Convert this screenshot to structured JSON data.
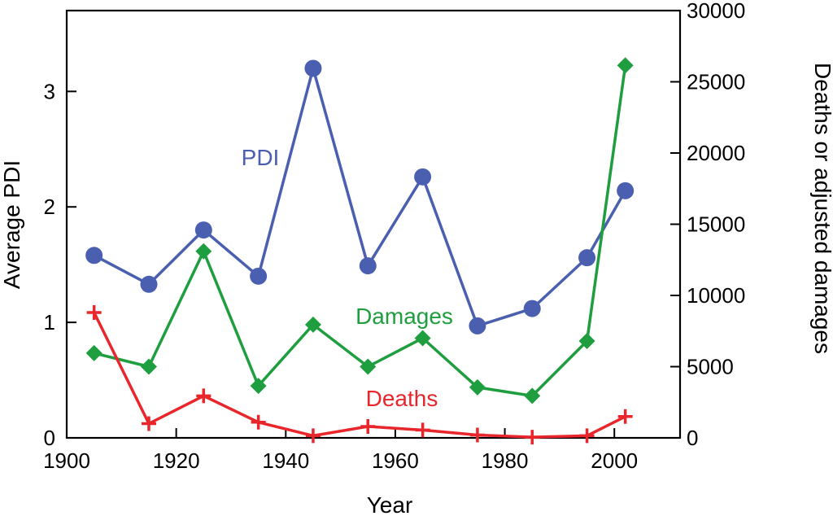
{
  "chart_data": {
    "type": "line",
    "xlabel": "Year",
    "ylabel_left": "Average PDI",
    "ylabel_right": "Deaths or adjusted damages",
    "xlim": [
      1900,
      2012
    ],
    "ylim_left": [
      0,
      3.7
    ],
    "ylim_right": [
      0,
      30000
    ],
    "x_ticks": [
      1900,
      1920,
      1940,
      1960,
      1980,
      2000
    ],
    "y_left_ticks": [
      0,
      1,
      2,
      3
    ],
    "y_right_ticks": [
      0,
      5000,
      10000,
      15000,
      20000,
      25000,
      30000
    ],
    "grid": false,
    "series": [
      {
        "name": "PDI",
        "axis": "left",
        "color": "#4a5fb0",
        "marker": "circle",
        "x": [
          1905,
          1915,
          1925,
          1935,
          1945,
          1955,
          1965,
          1975,
          1985,
          1995,
          2002
        ],
        "values": [
          1.58,
          1.33,
          1.8,
          1.4,
          3.2,
          1.49,
          2.26,
          0.97,
          1.12,
          1.56,
          2.14
        ]
      },
      {
        "name": "Damages",
        "axis": "right",
        "color": "#1e9e3e",
        "marker": "diamond",
        "x": [
          1905,
          1915,
          1925,
          1935,
          1945,
          1955,
          1965,
          1975,
          1985,
          1995,
          2002
        ],
        "values": [
          5950,
          5000,
          13100,
          3650,
          7950,
          5000,
          7000,
          3550,
          2950,
          6800,
          26150
        ]
      },
      {
        "name": "Deaths",
        "axis": "right",
        "color": "#e8262b",
        "marker": "plus",
        "x": [
          1905,
          1915,
          1925,
          1935,
          1945,
          1955,
          1965,
          1975,
          1985,
          1995,
          2002
        ],
        "values": [
          8800,
          1000,
          2950,
          1100,
          150,
          800,
          550,
          200,
          50,
          150,
          1500
        ]
      }
    ],
    "annotations": [
      {
        "text": "PDI",
        "series": "PDI"
      },
      {
        "text": "Damages",
        "series": "Damages"
      },
      {
        "text": "Deaths",
        "series": "Deaths"
      }
    ]
  }
}
